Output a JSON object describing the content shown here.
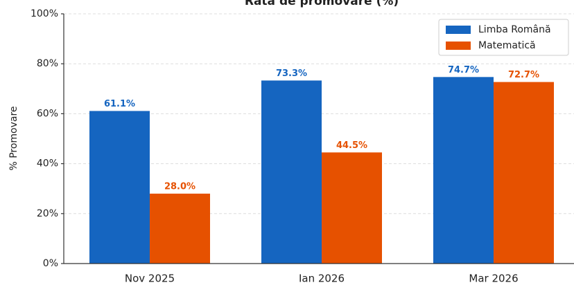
{
  "chart_data": {
    "type": "bar",
    "title": "Rata de promovare (%)",
    "y_label": "% Promovare",
    "categories": [
      "Nov 2025",
      "Ian 2026",
      "Mar 2026"
    ],
    "series": [
      {
        "name": "Limba Română",
        "color": "#1565c0",
        "values": [
          61.1,
          73.3,
          74.7
        ],
        "value_labels": [
          "61.1%",
          "73.3%",
          "74.7%"
        ]
      },
      {
        "name": "Matematică",
        "color": "#e65100",
        "values": [
          28.0,
          44.5,
          72.7
        ],
        "value_labels": [
          "28.0%",
          "44.5%",
          "72.7%"
        ]
      }
    ],
    "ylim": [
      0,
      100
    ],
    "yticks": [
      {
        "value": 0,
        "label": "0%"
      },
      {
        "value": 20,
        "label": "20%"
      },
      {
        "value": 40,
        "label": "40%"
      },
      {
        "value": 60,
        "label": "60%"
      },
      {
        "value": 80,
        "label": "80%"
      },
      {
        "value": 100,
        "label": "100%"
      }
    ],
    "grid": true,
    "legend": "upper right"
  }
}
